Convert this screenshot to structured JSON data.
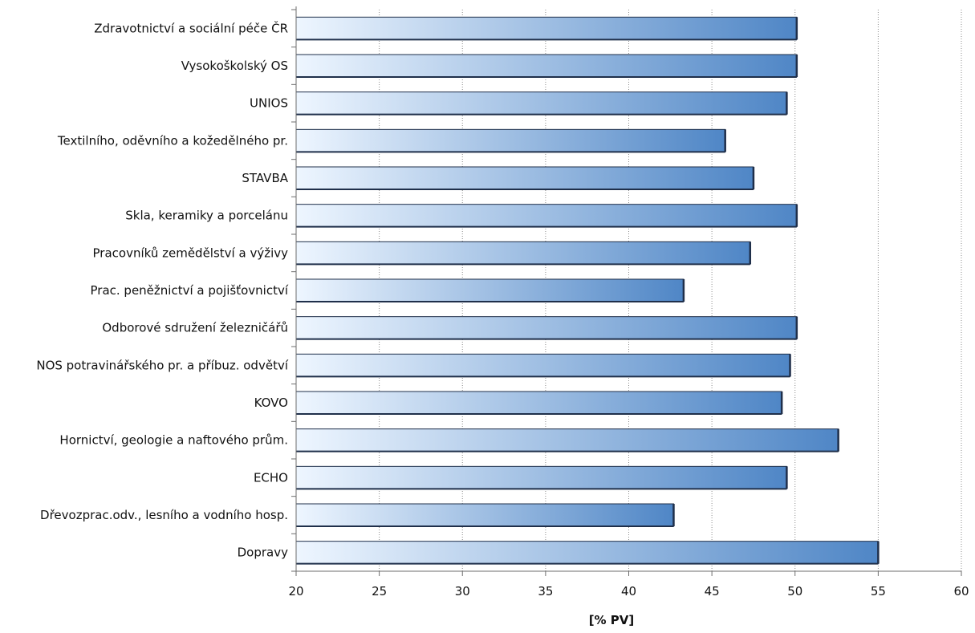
{
  "chart_data": {
    "type": "bar",
    "orientation": "horizontal",
    "categories": [
      "Zdravotnictví a sociální péče ČR",
      "Vysokoškolský OS",
      "UNIOS",
      "Textilního, oděvního a kožedělného pr.",
      "STAVBA",
      "Skla, keramiky a porcelánu",
      "Pracovníků zemědělství a výživy",
      "Prac. peněžnictví a pojišťovnictví",
      "Odborové sdružení železničářů",
      "NOS potravinářského pr. a příbuz. odvětví",
      "KOVO",
      "Hornictví, geologie a naftového prům.",
      "ECHO",
      "Dřevozprac.odv., lesního a vodního hosp.",
      "Dopravy"
    ],
    "values": [
      50.1,
      50.1,
      49.5,
      45.8,
      47.5,
      50.1,
      47.3,
      43.3,
      50.1,
      49.7,
      49.2,
      52.6,
      49.5,
      42.7,
      55.0
    ],
    "xlabel": "[% PV]",
    "xlim": [
      20,
      60
    ],
    "xticks": [
      "20",
      "25",
      "30",
      "35",
      "40",
      "45",
      "50",
      "55",
      "60"
    ],
    "grid": "vertical dotted",
    "colors": {
      "bar_start": "#eef6ff",
      "bar_end": "#4f86c6",
      "bar_border": "#1f2f4a",
      "grid": "#8c8c8c",
      "axis": "#6e6e6e"
    }
  }
}
